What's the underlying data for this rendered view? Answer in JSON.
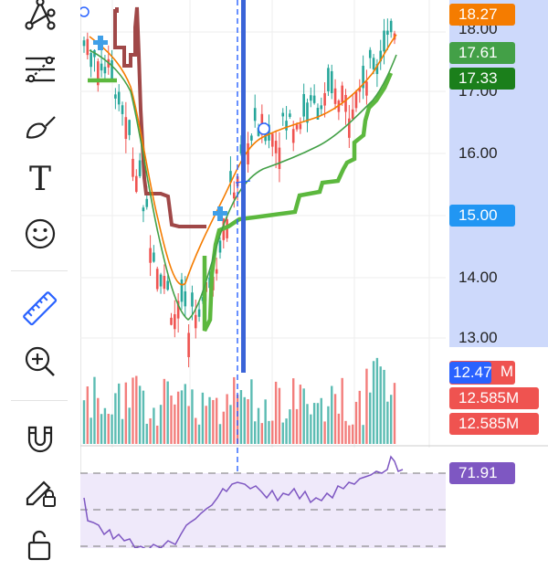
{
  "toolbar": {
    "tools": [
      {
        "name": "pattern-tool",
        "icon": "pattern-nodes-icon"
      },
      {
        "name": "fib-tool",
        "icon": "fib-retracement-icon"
      },
      {
        "name": "brush-tool",
        "icon": "brush-icon"
      },
      {
        "name": "text-tool",
        "icon": "text-icon",
        "glyph": "T"
      },
      {
        "name": "emoji-tool",
        "icon": "smiley-icon"
      },
      {
        "name": "ruler-tool",
        "icon": "ruler-icon"
      },
      {
        "name": "zoom-tool",
        "icon": "zoom-in-icon"
      },
      {
        "name": "magnet-tool",
        "icon": "magnet-icon"
      },
      {
        "name": "lock-draw-tool",
        "icon": "pencil-lock-icon"
      },
      {
        "name": "unlock-tool",
        "icon": "unlock-icon"
      }
    ],
    "active_color": "#2962ff"
  },
  "price_axis": {
    "ticks": [
      "18.00",
      "17.00",
      "16.00",
      "14.00",
      "13.00"
    ],
    "labels": [
      {
        "text": "18.27",
        "color": "#f57c00"
      },
      {
        "text": "17.61",
        "color": "#43a047"
      },
      {
        "text": "17.33",
        "color": "#1b7f1b"
      },
      {
        "text": "15.00",
        "color": "#2196f3"
      },
      {
        "text": "12.47",
        "color": "#2962ff"
      },
      {
        "text": "12.585M",
        "color": "#ef5350"
      },
      {
        "text": "12.585M",
        "color": "#ef5350"
      }
    ],
    "partial_label_suffix": "M"
  },
  "rsi": {
    "value": "71.91",
    "color": "#7e57c2"
  },
  "colors": {
    "up": "#26a69a",
    "down": "#ef5350",
    "ma_fast": "#f57c00",
    "ma_slow": "#43a047",
    "supertrend_up": "#5cb83e",
    "supertrend_down": "#a04848",
    "vline": "#2962ff",
    "highlight": "#cdd9fb"
  },
  "chart_data": {
    "type": "line",
    "price_series_approx": [
      17.7,
      17.5,
      17.2,
      16.3,
      15.2,
      14.2,
      13.5,
      13.3,
      13.6,
      14.4,
      15.4,
      16.2,
      16.4,
      16.3,
      16.5,
      16.6,
      16.8,
      16.9,
      16.8,
      17.2,
      17.6,
      18.1
    ],
    "rsi_series_approx": [
      40,
      30,
      22,
      25,
      38,
      48,
      55,
      60,
      58,
      55,
      57,
      60,
      58,
      62,
      66,
      70,
      72,
      71.91
    ]
  }
}
